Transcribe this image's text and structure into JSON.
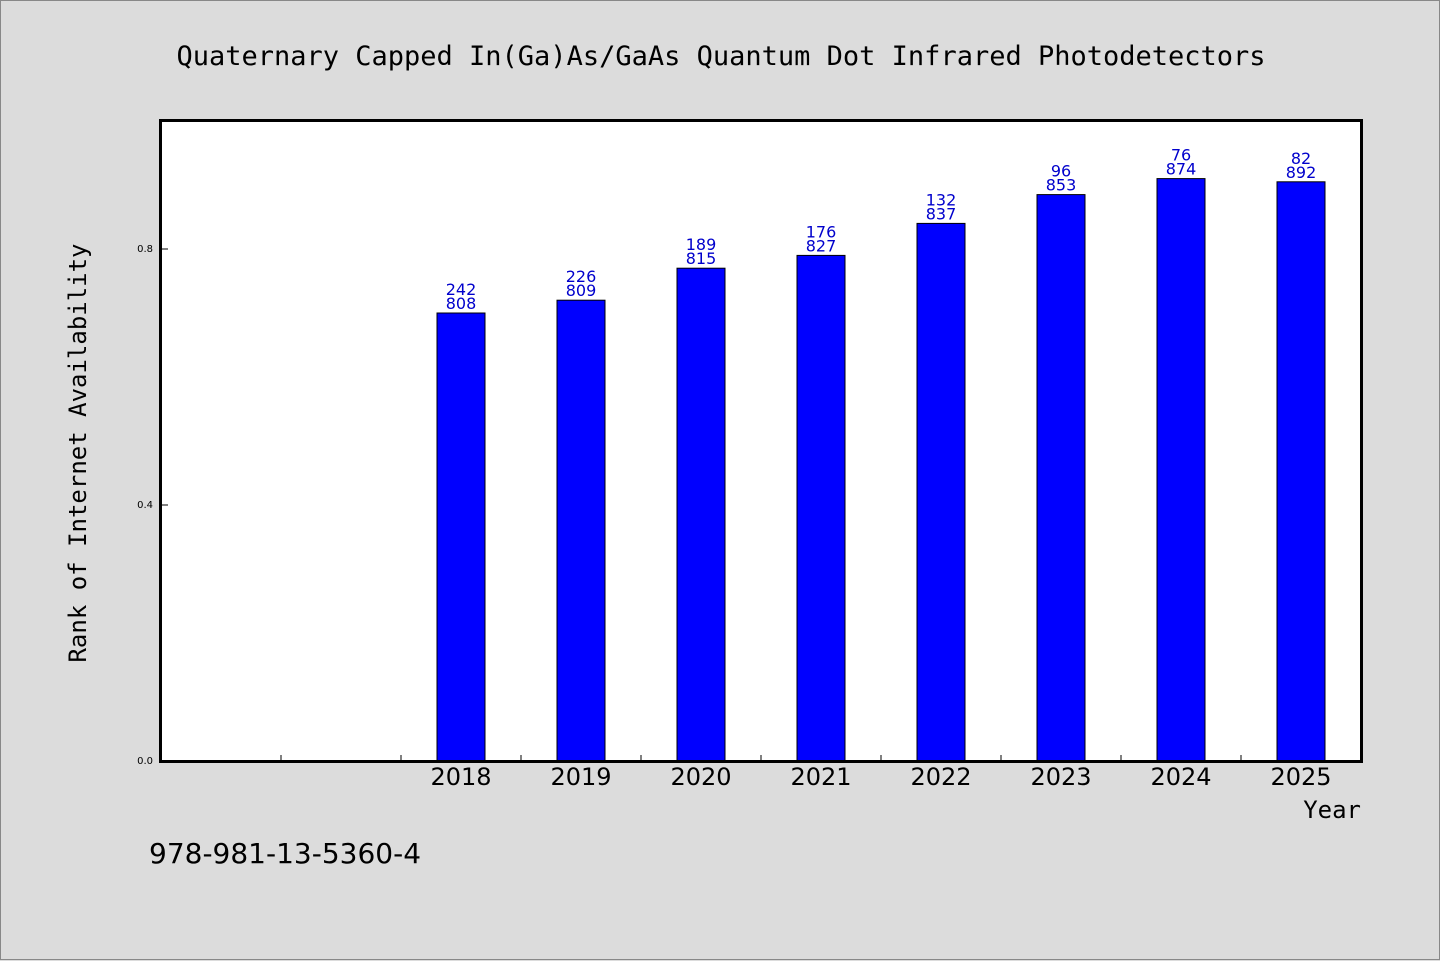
{
  "colors": {
    "bar": "#0000ff",
    "bar_label": "#0000cc",
    "background": "#dcdcdc",
    "plot_background": "#ffffff"
  },
  "footer": {
    "isbn": "978-981-13-5360-4"
  },
  "chart_data": {
    "type": "bar",
    "title": "Quaternary Capped In(Ga)As/GaAs Quantum Dot Infrared Photodetectors",
    "xlabel": "Year",
    "ylabel": "Rank of Internet Availability",
    "ylim": [
      0.0,
      1.0
    ],
    "yticks": [
      {
        "value": 0.0,
        "label": "0.0"
      },
      {
        "value": 0.4,
        "label": "0.4"
      },
      {
        "value": 0.8,
        "label": "0.8"
      }
    ],
    "grid": false,
    "categories": [
      "",
      "",
      "2018",
      "2019",
      "2020",
      "2021",
      "2022",
      "2023",
      "2024",
      "2025"
    ],
    "values": [
      null,
      null,
      0.7,
      0.72,
      0.77,
      0.79,
      0.84,
      0.885,
      0.91,
      0.905
    ],
    "labels_top": [
      null,
      null,
      "242",
      "226",
      "189",
      "176",
      "132",
      "96",
      "76",
      "82"
    ],
    "labels_bottom": [
      null,
      null,
      "808",
      "809",
      "815",
      "827",
      "837",
      "853",
      "874",
      "892"
    ]
  }
}
